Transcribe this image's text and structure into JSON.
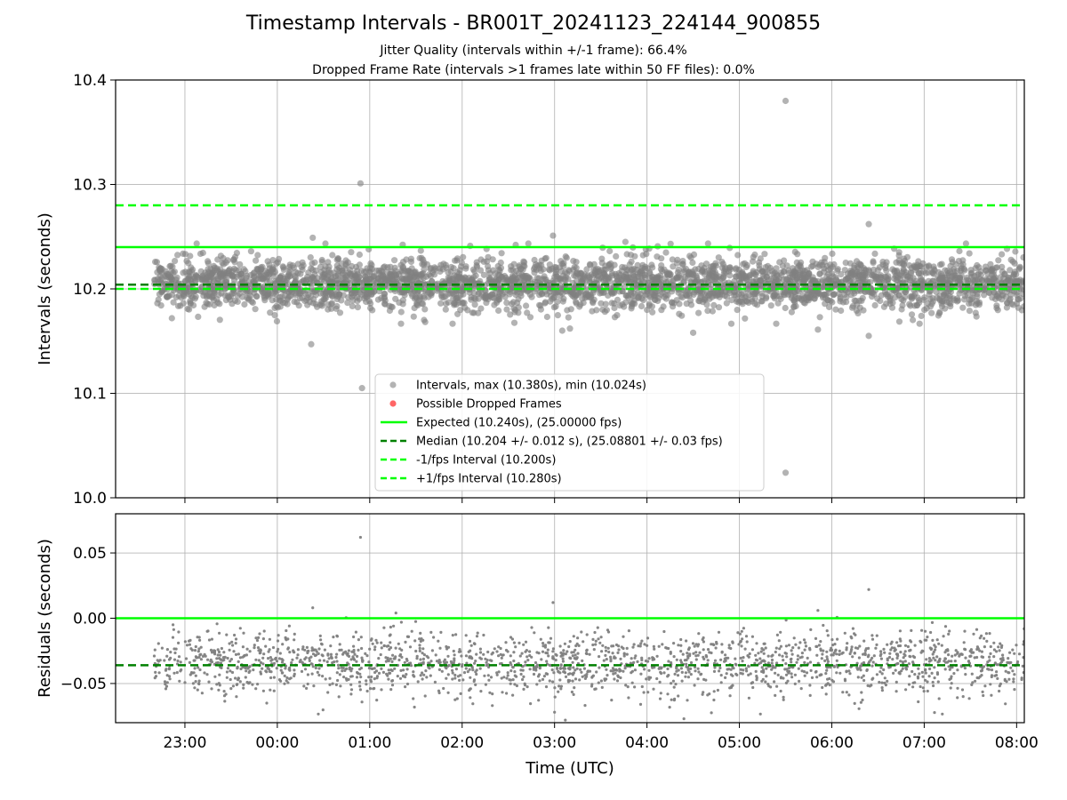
{
  "figure": {
    "title": "Timestamp Intervals - BR001T_20241123_224144_900855",
    "subtitle_1": "Jitter Quality (intervals within +/-1 frame): 66.4%",
    "subtitle_2": "Dropped Frame Rate (intervals >1 frames late within 50 FF files): 0.0%"
  },
  "colors": {
    "points": "#808080",
    "dropped": "#ff0000",
    "expected": "#00ff00",
    "median": "#008000",
    "bounds": "#00ff00",
    "grid": "#b0b0b0"
  },
  "chart_data": [
    {
      "type": "scatter",
      "ylabel": "Intervals (seconds)",
      "xlabel": "",
      "ylim": [
        10.0,
        10.4
      ],
      "yticks": [
        "10.0",
        "10.1",
        "10.2",
        "10.3",
        "10.4"
      ],
      "xlim": [
        "22:15",
        "08:05"
      ],
      "xticks": [
        "23:00",
        "00:00",
        "01:00",
        "02:00",
        "03:00",
        "04:00",
        "05:00",
        "06:00",
        "07:00",
        "08:00"
      ],
      "grid": true,
      "legend_position": "bottom-center",
      "reference_lines": [
        {
          "name": "Expected (10.240s), (25.00000 fps)",
          "y": 10.24,
          "style": "solid",
          "color_key": "expected"
        },
        {
          "name": "Median (10.204 +/- 0.012 s), (25.08801 +/- 0.03 fps)",
          "y": 10.204,
          "style": "dashed",
          "color_key": "median"
        },
        {
          "name": "-1/fps Interval (10.200s)",
          "y": 10.2,
          "style": "dashed",
          "color_key": "bounds"
        },
        {
          "name": "+1/fps Interval (10.280s)",
          "y": 10.28,
          "style": "dashed",
          "color_key": "bounds"
        }
      ],
      "series": [
        {
          "name": "Intervals, max (10.380s), min (10.024s)",
          "x_range": [
            "22:40",
            "08:05"
          ],
          "center": 10.205,
          "spread": 0.012,
          "count": 3300
        },
        {
          "name": "Possible Dropped Frames",
          "points": []
        }
      ],
      "outliers": [
        {
          "x": "05:30",
          "y": 10.38
        },
        {
          "x": "00:54",
          "y": 10.301
        },
        {
          "x": "06:24",
          "y": 10.262
        },
        {
          "x": "02:59",
          "y": 10.251
        },
        {
          "x": "00:23",
          "y": 10.249
        },
        {
          "x": "00:22",
          "y": 10.147
        },
        {
          "x": "00:55",
          "y": 10.105
        },
        {
          "x": "05:30",
          "y": 10.024
        },
        {
          "x": "04:30",
          "y": 10.158
        },
        {
          "x": "06:24",
          "y": 10.155
        },
        {
          "x": "03:10",
          "y": 10.162
        },
        {
          "x": "03:05",
          "y": 10.16
        },
        {
          "x": "05:51",
          "y": 10.161
        },
        {
          "x": "03:46",
          "y": 10.245
        }
      ]
    },
    {
      "type": "scatter",
      "ylabel": "Residuals (seconds)",
      "xlabel": "Time (UTC)",
      "ylim": [
        -0.08,
        0.08
      ],
      "yticks": [
        "−0.05",
        "0.00",
        "0.05"
      ],
      "xlim": [
        "22:15",
        "08:05"
      ],
      "xticks": [
        "23:00",
        "00:00",
        "01:00",
        "02:00",
        "03:00",
        "04:00",
        "05:00",
        "06:00",
        "07:00",
        "08:00"
      ],
      "grid": true,
      "reference_lines": [
        {
          "y": 0.0,
          "style": "solid",
          "color_key": "expected"
        },
        {
          "y": -0.036,
          "style": "dashed",
          "color_key": "median"
        }
      ],
      "series": [
        {
          "x_range": [
            "22:40",
            "08:05"
          ],
          "center": -0.035,
          "spread": 0.012,
          "count": 2000
        }
      ],
      "outliers": [
        {
          "x": "00:54",
          "y": 0.062
        },
        {
          "x": "06:24",
          "y": 0.022
        },
        {
          "x": "02:59",
          "y": 0.012
        },
        {
          "x": "00:23",
          "y": 0.008
        },
        {
          "x": "01:17",
          "y": 0.004
        },
        {
          "x": "05:51",
          "y": 0.006
        },
        {
          "x": "03:07",
          "y": -0.078
        },
        {
          "x": "03:00",
          "y": -0.072
        },
        {
          "x": "04:24",
          "y": -0.077
        }
      ]
    }
  ]
}
